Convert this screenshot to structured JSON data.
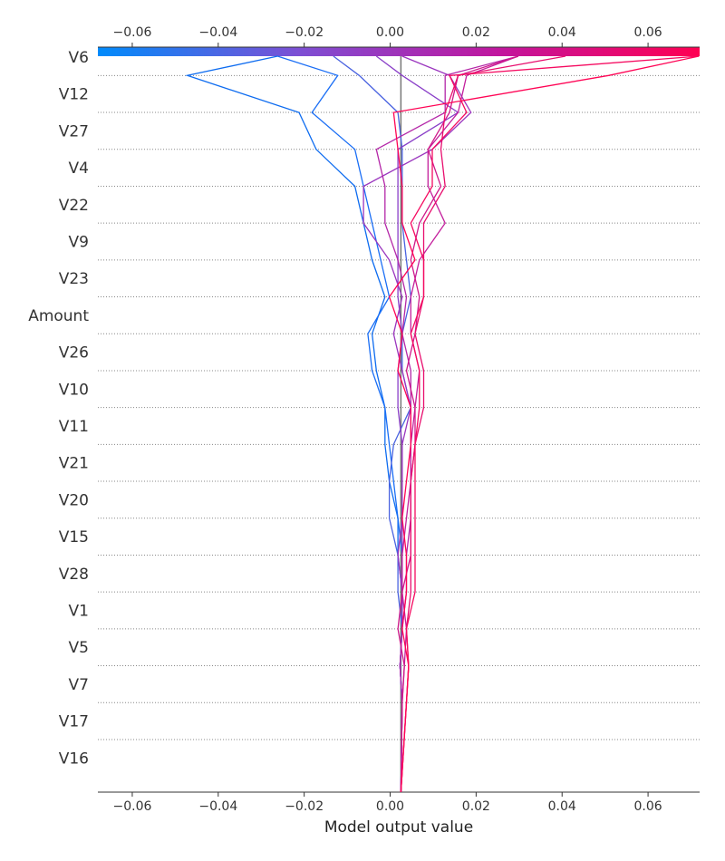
{
  "chart_data": {
    "type": "line",
    "subtype": "decision-plot",
    "title": "",
    "xlabel": "Model output value",
    "ylabel": "",
    "xlim": [
      -0.068,
      0.072
    ],
    "xticks": [
      -0.06,
      -0.04,
      -0.02,
      0.0,
      0.02,
      0.04,
      0.06
    ],
    "xtick_labels": [
      "−0.06",
      "−0.04",
      "−0.02",
      "0.00",
      "0.02",
      "0.04",
      "0.06"
    ],
    "features": [
      "V6",
      "V12",
      "V27",
      "V4",
      "V22",
      "V9",
      "V23",
      "Amount",
      "V26",
      "V10",
      "V11",
      "V21",
      "V20",
      "V15",
      "V28",
      "V1",
      "V5",
      "V7",
      "V17",
      "V16"
    ],
    "base_value": 0.0025,
    "colorbar": {
      "colors": [
        "#008bfb",
        "#7d4fd4",
        "#c1169e",
        "#ff0052"
      ],
      "range": [
        -0.068,
        0.072
      ],
      "position": "top"
    },
    "series": [
      {
        "color": "#0e6cf0",
        "values": [
          -0.0262,
          -0.0472,
          -0.0212,
          -0.0172,
          -0.0082,
          -0.0062,
          -0.0042,
          -0.0012,
          -0.0042,
          -0.0032,
          -0.0012,
          -0.0012,
          -0.0002,
          0.0018,
          0.0018,
          0.0028,
          0.0028,
          0.0023,
          0.0028,
          0.0025
        ]
      },
      {
        "color": "#1a6ef5",
        "values": [
          -0.0262,
          -0.0122,
          -0.0182,
          -0.0082,
          -0.0062,
          -0.0042,
          -0.0022,
          -0.0002,
          -0.0052,
          -0.0042,
          -0.0012,
          -0.0002,
          0.0008,
          0.0018,
          0.0028,
          0.0028,
          0.0028,
          0.0023,
          0.0028,
          0.0025
        ]
      },
      {
        "color": "#4a63e0",
        "values": [
          -0.0132,
          -0.0072,
          0.0018,
          0.0028,
          0.0028,
          0.0028,
          0.0038,
          0.0048,
          0.0028,
          0.0028,
          0.0048,
          0.0008,
          -0.0002,
          -0.0002,
          0.0018,
          0.0018,
          0.0028,
          0.0023,
          0.0028,
          0.0025
        ]
      },
      {
        "color": "#8a3fc8",
        "values": [
          -0.0032,
          0.0028,
          0.0158,
          0.0018,
          0.0018,
          0.0018,
          0.0018,
          0.0018,
          0.0028,
          0.0018,
          0.0018,
          0.0028,
          0.0028,
          0.0028,
          0.0028,
          0.0028,
          0.0028,
          0.0023,
          0.0028,
          0.0025
        ]
      },
      {
        "color": "#9a35be",
        "values": [
          0.0028,
          0.0138,
          0.0188,
          0.0098,
          -0.0062,
          -0.0062,
          -0.0002,
          0.0028,
          0.0008,
          0.0028,
          0.0048,
          0.0028,
          0.0028,
          0.0028,
          0.0018,
          0.0028,
          0.0028,
          0.0023,
          0.0028,
          0.0025
        ]
      },
      {
        "color": "#b427a8",
        "values": [
          0.0298,
          0.0128,
          0.0128,
          -0.0032,
          -0.0012,
          -0.0012,
          0.0018,
          0.0038,
          0.0028,
          0.0048,
          0.0048,
          0.0048,
          0.0048,
          0.0048,
          0.0038,
          0.0038,
          0.0028,
          0.0023,
          0.0028,
          0.0025
        ]
      },
      {
        "color": "#c31f9c",
        "values": [
          0.0298,
          0.0178,
          0.0158,
          0.0088,
          0.0088,
          0.0128,
          0.0068,
          0.0048,
          0.0048,
          0.0068,
          0.0058,
          0.0048,
          0.0048,
          0.0038,
          0.0028,
          0.0028,
          0.0038,
          0.0033,
          0.0028,
          0.0025
        ]
      },
      {
        "color": "#cf188a",
        "values": [
          0.0298,
          0.0158,
          0.0138,
          0.0088,
          0.0118,
          0.0068,
          0.0048,
          0.0068,
          0.0058,
          0.0038,
          0.0058,
          0.0058,
          0.0048,
          0.0048,
          0.0048,
          0.0028,
          0.0018,
          0.0033,
          0.0028,
          0.0025
        ]
      },
      {
        "color": "#e80e6e",
        "values": [
          0.0408,
          0.0158,
          0.0128,
          0.0118,
          0.0128,
          0.0078,
          0.0078,
          0.0078,
          0.0058,
          0.0078,
          0.0078,
          0.0058,
          0.0048,
          0.0048,
          0.0048,
          0.0048,
          0.0038,
          0.0043,
          0.0038,
          0.0025
        ]
      },
      {
        "color": "#f50a60",
        "values": [
          0.0718,
          0.0138,
          0.0178,
          0.0098,
          0.0098,
          0.0048,
          0.0078,
          0.0078,
          0.0048,
          0.0068,
          0.0068,
          0.0058,
          0.0058,
          0.0058,
          0.0058,
          0.0058,
          0.0038,
          0.0043,
          0.0038,
          0.0025
        ]
      },
      {
        "color": "#ff0455",
        "values": [
          0.0718,
          0.0508,
          0.0008,
          0.0018,
          0.0028,
          0.0028,
          0.0058,
          -0.0002,
          0.0028,
          0.0018,
          0.0048,
          0.0048,
          0.0038,
          0.0028,
          0.0038,
          0.0038,
          0.0028,
          0.0043,
          0.0038,
          0.0025
        ]
      }
    ]
  }
}
